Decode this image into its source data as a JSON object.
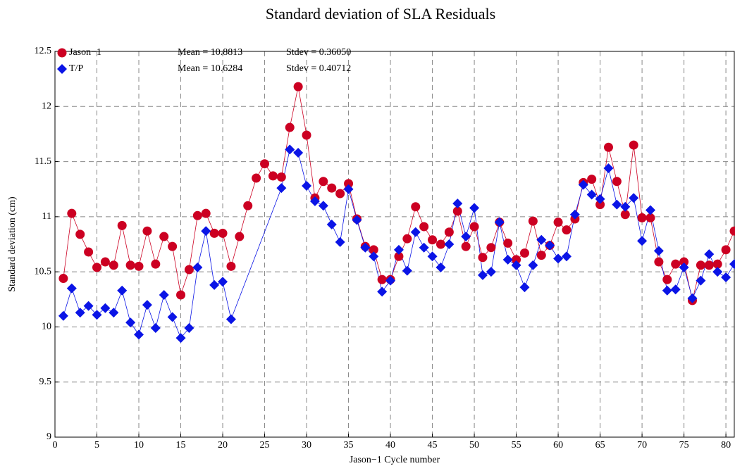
{
  "chart_data": {
    "type": "line",
    "title": "Standard deviation of SLA Residuals",
    "xlabel": "Jason−1 Cycle number",
    "ylabel": "Standard deviation (cm)",
    "xlim": [
      0,
      81
    ],
    "ylim": [
      9,
      12.5
    ],
    "xticks": [
      0,
      5,
      10,
      15,
      20,
      25,
      30,
      35,
      40,
      45,
      50,
      55,
      60,
      65,
      70,
      75,
      80
    ],
    "yticks": [
      9,
      9.5,
      10,
      10.5,
      11,
      11.5,
      12,
      12.5
    ],
    "grid": true,
    "legend": "upper left",
    "annotations": [
      [
        "Mean = 10.8813",
        "Stdev = 0.36050"
      ],
      [
        "Mean = 10.6284",
        "Stdev = 0.40712"
      ]
    ],
    "series": [
      {
        "name": "Jason−1",
        "color": "#cc0022",
        "marker": "circle",
        "x": [
          1,
          2,
          3,
          4,
          5,
          6,
          7,
          8,
          9,
          10,
          11,
          12,
          13,
          14,
          15,
          16,
          17,
          18,
          19,
          20,
          21,
          22,
          23,
          24,
          25,
          26,
          27,
          28,
          29,
          30,
          31,
          32,
          33,
          34,
          35,
          36,
          37,
          38,
          39,
          40,
          41,
          42,
          43,
          44,
          45,
          46,
          47,
          48,
          49,
          50,
          51,
          52,
          53,
          54,
          55,
          56,
          57,
          58,
          59,
          60,
          61,
          62,
          63,
          64,
          65,
          66,
          67,
          68,
          69,
          70,
          71,
          72,
          73,
          74,
          75,
          76,
          77,
          78,
          79,
          80,
          81
        ],
        "values": [
          10.44,
          11.03,
          10.84,
          10.68,
          10.54,
          10.59,
          10.56,
          10.92,
          10.56,
          10.55,
          10.87,
          10.57,
          10.82,
          10.73,
          10.29,
          10.52,
          11.01,
          11.03,
          10.85,
          10.85,
          10.55,
          10.82,
          11.1,
          11.35,
          11.48,
          11.37,
          11.36,
          11.81,
          12.18,
          11.74,
          11.17,
          11.32,
          11.26,
          11.21,
          11.3,
          10.98,
          10.73,
          10.7,
          10.43,
          10.43,
          10.64,
          10.8,
          11.09,
          10.91,
          10.79,
          10.75,
          10.86,
          11.05,
          10.73,
          10.91,
          10.63,
          10.72,
          10.95,
          10.76,
          10.61,
          10.67,
          10.96,
          10.65,
          10.74,
          10.95,
          10.88,
          10.98,
          11.31,
          11.34,
          11.11,
          11.63,
          11.32,
          11.02,
          11.65,
          10.99,
          10.99,
          10.59,
          10.43,
          10.57,
          10.59,
          10.24,
          10.56,
          10.56,
          10.57,
          10.7,
          10.87
        ]
      },
      {
        "name": "T/P",
        "color": "#0a14e6",
        "marker": "diamond",
        "x": [
          1,
          2,
          3,
          4,
          5,
          6,
          7,
          8,
          9,
          10,
          11,
          12,
          13,
          14,
          15,
          16,
          17,
          18,
          19,
          20,
          21,
          27,
          28,
          29,
          30,
          31,
          32,
          33,
          34,
          35,
          36,
          37,
          38,
          39,
          40,
          41,
          42,
          43,
          44,
          45,
          46,
          47,
          48,
          49,
          50,
          51,
          52,
          53,
          54,
          55,
          56,
          57,
          58,
          59,
          60,
          61,
          62,
          63,
          64,
          65,
          66,
          67,
          68,
          69,
          70,
          71,
          72,
          73,
          74,
          75,
          76,
          77,
          78,
          79,
          80,
          81
        ],
        "values": [
          10.1,
          10.35,
          10.13,
          10.19,
          10.11,
          10.17,
          10.13,
          10.33,
          10.04,
          9.93,
          10.2,
          9.99,
          10.29,
          10.09,
          9.9,
          9.99,
          10.54,
          10.87,
          10.38,
          10.41,
          10.07,
          11.26,
          11.61,
          11.58,
          11.28,
          11.14,
          11.1,
          10.93,
          10.77,
          11.25,
          10.97,
          10.72,
          10.64,
          10.32,
          10.42,
          10.7,
          10.51,
          10.86,
          10.72,
          10.64,
          10.54,
          10.75,
          11.12,
          10.82,
          11.08,
          10.47,
          10.5,
          10.95,
          10.61,
          10.56,
          10.36,
          10.56,
          10.79,
          10.74,
          10.62,
          10.64,
          11.02,
          11.29,
          11.2,
          11.16,
          11.44,
          11.11,
          11.09,
          11.17,
          10.78,
          11.06,
          10.69,
          10.33,
          10.34,
          10.54,
          10.26,
          10.42,
          10.66,
          10.5,
          10.45,
          10.57
        ]
      }
    ]
  }
}
